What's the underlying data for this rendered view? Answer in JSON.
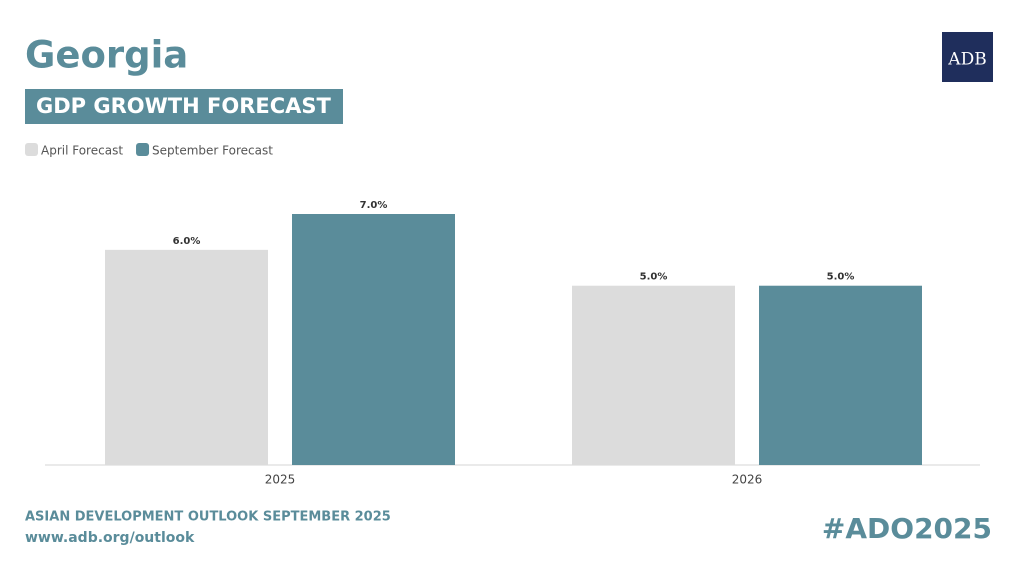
{
  "chart_data": {
    "type": "bar",
    "title": "Georgia",
    "subtitle": "GDP GROWTH FORECAST",
    "logo": "ADB",
    "footer_title": "ASIAN DEVELOPMENT OUTLOOK SEPTEMBER 2025",
    "footer_url": "www.adb.org/outlook",
    "hashtag": "#ADO2025",
    "categories": [
      "2025",
      "2026"
    ],
    "series": [
      {
        "name": "April Forecast",
        "color": "#dcdcdc",
        "values": [
          6.0,
          5.0
        ],
        "value_labels": [
          "6.0%",
          "5.0%"
        ]
      },
      {
        "name": "September Forecast",
        "color": "#5a8c9a",
        "values": [
          7.0,
          5.0
        ],
        "value_labels": [
          "7.0%",
          "5.0%"
        ]
      }
    ]
  }
}
